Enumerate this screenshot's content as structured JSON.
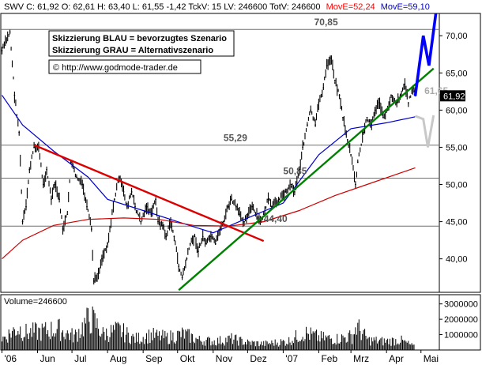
{
  "header": {
    "prefix": "SWV C: 61,92 O: 62,61 H: 63,40 L: 61,55 -1,42 TckV: 15 LV: 246600 TotV: 246600",
    "ma_short": "MovE=52,24",
    "ma_long": "MovE=59,10"
  },
  "annotations": {
    "line1": "Skizzierung BLAU = bevorzugtes Szenario",
    "line2": "Skizzierung GRAU = Alternativszenario",
    "url": "© http://www.godmode-trader.de"
  },
  "volume": {
    "label": "Volume=246600"
  },
  "colors": {
    "price": "#000000",
    "ma_long": "#0000cc",
    "ma_short": "#cc0000",
    "uptrend": "#008000",
    "downtrend": "#dd0000",
    "scenario_blue": "#0000ff",
    "scenario_grey": "#c8c8c8",
    "levels": "#707070",
    "header_red": "#ff0000",
    "header_blue": "#0000cc",
    "last_price_tag": "#000000"
  },
  "chart_data": {
    "type": "bar",
    "subtype": "ohlc-price-chart",
    "title": "",
    "xlabel": "",
    "ylabel": "",
    "ylim": [
      35.5,
      73
    ],
    "y_ticks": [
      "70,00",
      "65,00",
      "60,00",
      "55,00",
      "50,00",
      "45,00",
      "40,00"
    ],
    "x_ticks": [
      "'06",
      "Jun",
      "Jul",
      "Aug",
      "Sep",
      "Okt",
      "Nov",
      "Dez",
      "'07",
      "Feb",
      "Mrz",
      "Apr",
      "Mai"
    ],
    "last_price": "61,92",
    "levels": [
      {
        "label": "70,85",
        "value": 70.85
      },
      {
        "label": "61,65",
        "value": 61.65
      },
      {
        "label": "55,29",
        "value": 55.29
      },
      {
        "label": "50,85",
        "value": 50.85
      },
      {
        "label": "44,40",
        "value": 44.4
      }
    ],
    "price_series": [
      {
        "date": "2006-05-01",
        "value": 68
      },
      {
        "date": "2006-05-08",
        "value": 70.5
      },
      {
        "date": "2006-05-12",
        "value": 62
      },
      {
        "date": "2006-05-16",
        "value": 57
      },
      {
        "date": "2006-05-19",
        "value": 45
      },
      {
        "date": "2006-05-22",
        "value": 47
      },
      {
        "date": "2006-05-25",
        "value": 52
      },
      {
        "date": "2006-05-29",
        "value": 55
      },
      {
        "date": "2006-06-02",
        "value": 55
      },
      {
        "date": "2006-06-06",
        "value": 50
      },
      {
        "date": "2006-06-09",
        "value": 52
      },
      {
        "date": "2006-06-13",
        "value": 48
      },
      {
        "date": "2006-06-16",
        "value": 50
      },
      {
        "date": "2006-06-20",
        "value": 48
      },
      {
        "date": "2006-06-23",
        "value": 44
      },
      {
        "date": "2006-06-27",
        "value": 46
      },
      {
        "date": "2006-06-30",
        "value": 53
      },
      {
        "date": "2006-07-05",
        "value": 51
      },
      {
        "date": "2006-07-10",
        "value": 50
      },
      {
        "date": "2006-07-14",
        "value": 47
      },
      {
        "date": "2006-07-18",
        "value": 44
      },
      {
        "date": "2006-07-20",
        "value": 37
      },
      {
        "date": "2006-07-24",
        "value": 38
      },
      {
        "date": "2006-07-27",
        "value": 40
      },
      {
        "date": "2006-08-01",
        "value": 42
      },
      {
        "date": "2006-08-07",
        "value": 48
      },
      {
        "date": "2006-08-11",
        "value": 51
      },
      {
        "date": "2006-08-15",
        "value": 49
      },
      {
        "date": "2006-08-18",
        "value": 47
      },
      {
        "date": "2006-08-22",
        "value": 49
      },
      {
        "date": "2006-08-25",
        "value": 47
      },
      {
        "date": "2006-08-30",
        "value": 45
      },
      {
        "date": "2006-09-04",
        "value": 47
      },
      {
        "date": "2006-09-08",
        "value": 46
      },
      {
        "date": "2006-09-12",
        "value": 48
      },
      {
        "date": "2006-09-14",
        "value": 45
      },
      {
        "date": "2006-09-18",
        "value": 44.5
      },
      {
        "date": "2006-09-21",
        "value": 43
      },
      {
        "date": "2006-09-25",
        "value": 45
      },
      {
        "date": "2006-09-28",
        "value": 43
      },
      {
        "date": "2006-10-02",
        "value": 39
      },
      {
        "date": "2006-10-05",
        "value": 37.5
      },
      {
        "date": "2006-10-09",
        "value": 40
      },
      {
        "date": "2006-10-12",
        "value": 42
      },
      {
        "date": "2006-10-16",
        "value": 43
      },
      {
        "date": "2006-10-19",
        "value": 41
      },
      {
        "date": "2006-10-23",
        "value": 43
      },
      {
        "date": "2006-10-26",
        "value": 42
      },
      {
        "date": "2006-10-30",
        "value": 43
      },
      {
        "date": "2006-11-03",
        "value": 42
      },
      {
        "date": "2006-11-07",
        "value": 44
      },
      {
        "date": "2006-11-10",
        "value": 45
      },
      {
        "date": "2006-11-14",
        "value": 47
      },
      {
        "date": "2006-11-17",
        "value": 48
      },
      {
        "date": "2006-11-21",
        "value": 47
      },
      {
        "date": "2006-11-24",
        "value": 46
      },
      {
        "date": "2006-11-28",
        "value": 45
      },
      {
        "date": "2006-12-01",
        "value": 46
      },
      {
        "date": "2006-12-05",
        "value": 47
      },
      {
        "date": "2006-12-08",
        "value": 46
      },
      {
        "date": "2006-12-12",
        "value": 45
      },
      {
        "date": "2006-12-15",
        "value": 46
      },
      {
        "date": "2006-12-19",
        "value": 48
      },
      {
        "date": "2006-12-22",
        "value": 47
      },
      {
        "date": "2006-12-28",
        "value": 48
      },
      {
        "date": "2007-01-03",
        "value": 49
      },
      {
        "date": "2007-01-08",
        "value": 50
      },
      {
        "date": "2007-01-11",
        "value": 49
      },
      {
        "date": "2007-01-15",
        "value": 52
      },
      {
        "date": "2007-01-18",
        "value": 55
      },
      {
        "date": "2007-01-22",
        "value": 58
      },
      {
        "date": "2007-01-25",
        "value": 60
      },
      {
        "date": "2007-01-29",
        "value": 58
      },
      {
        "date": "2007-02-01",
        "value": 61
      },
      {
        "date": "2007-02-05",
        "value": 63
      },
      {
        "date": "2007-02-08",
        "value": 66
      },
      {
        "date": "2007-02-12",
        "value": 67
      },
      {
        "date": "2007-02-15",
        "value": 64
      },
      {
        "date": "2007-02-19",
        "value": 62
      },
      {
        "date": "2007-02-22",
        "value": 59
      },
      {
        "date": "2007-02-26",
        "value": 56
      },
      {
        "date": "2007-03-01",
        "value": 54
      },
      {
        "date": "2007-03-05",
        "value": 50
      },
      {
        "date": "2007-03-07",
        "value": 53
      },
      {
        "date": "2007-03-12",
        "value": 57
      },
      {
        "date": "2007-03-15",
        "value": 59
      },
      {
        "date": "2007-03-19",
        "value": 58
      },
      {
        "date": "2007-03-22",
        "value": 60
      },
      {
        "date": "2007-03-26",
        "value": 61
      },
      {
        "date": "2007-03-29",
        "value": 59
      },
      {
        "date": "2007-04-02",
        "value": 60
      },
      {
        "date": "2007-04-05",
        "value": 62
      },
      {
        "date": "2007-04-10",
        "value": 61
      },
      {
        "date": "2007-04-13",
        "value": 62
      },
      {
        "date": "2007-04-17",
        "value": 63.5
      },
      {
        "date": "2007-04-20",
        "value": 61
      },
      {
        "date": "2007-04-24",
        "value": 63
      },
      {
        "date": "2007-04-26",
        "value": 61.92
      }
    ],
    "series": [
      {
        "name": "MovE=59,10",
        "values": [
          {
            "date": "2006-05-01",
            "value": 62
          },
          {
            "date": "2006-05-19",
            "value": 58
          },
          {
            "date": "2006-06-15",
            "value": 54.5
          },
          {
            "date": "2006-07-15",
            "value": 51
          },
          {
            "date": "2006-08-01",
            "value": 48
          },
          {
            "date": "2006-09-01",
            "value": 46.5
          },
          {
            "date": "2006-10-01",
            "value": 45
          },
          {
            "date": "2006-11-01",
            "value": 43.5
          },
          {
            "date": "2006-12-01",
            "value": 45.5
          },
          {
            "date": "2007-01-01",
            "value": 47.5
          },
          {
            "date": "2007-02-01",
            "value": 54
          },
          {
            "date": "2007-03-01",
            "value": 57.5
          },
          {
            "date": "2007-04-01",
            "value": 58.3
          },
          {
            "date": "2007-04-26",
            "value": 59.1
          }
        ]
      },
      {
        "name": "MovE=52,24",
        "values": [
          {
            "date": "2006-05-01",
            "value": 40
          },
          {
            "date": "2006-05-19",
            "value": 42.5
          },
          {
            "date": "2006-06-15",
            "value": 44.5
          },
          {
            "date": "2006-07-15",
            "value": 45.3
          },
          {
            "date": "2006-08-15",
            "value": 45.5
          },
          {
            "date": "2006-09-15",
            "value": 45.3
          },
          {
            "date": "2006-10-15",
            "value": 44.5
          },
          {
            "date": "2006-11-15",
            "value": 44.4
          },
          {
            "date": "2006-12-15",
            "value": 45
          },
          {
            "date": "2007-01-15",
            "value": 46.5
          },
          {
            "date": "2007-02-15",
            "value": 48.5
          },
          {
            "date": "2007-03-15",
            "value": 50
          },
          {
            "date": "2007-04-26",
            "value": 52.24
          }
        ]
      }
    ],
    "trendlines": [
      {
        "name": "Abwaertstrend",
        "from": {
          "date": "2006-05-29",
          "value": 55.3
        },
        "to": {
          "date": "2006-12-15",
          "value": 42.4
        }
      },
      {
        "name": "Aufwaertstrend",
        "from": {
          "date": "2006-10-02",
          "value": 35.8
        },
        "to": {
          "date": "2007-05-12",
          "value": 65.6
        }
      }
    ],
    "scenarios": [
      {
        "name": "bevorzugtes Szenario",
        "points": [
          {
            "date": "2007-04-26",
            "value": 61.9
          },
          {
            "date": "2007-05-03",
            "value": 70
          },
          {
            "date": "2007-05-08",
            "value": 66
          },
          {
            "date": "2007-05-14",
            "value": 73
          }
        ]
      },
      {
        "name": "Alternativszenario",
        "points": [
          {
            "date": "2007-04-26",
            "value": 59.2
          },
          {
            "date": "2007-05-03",
            "value": 58.8
          },
          {
            "date": "2007-05-07",
            "value": 55
          },
          {
            "date": "2007-05-12",
            "value": 59.3
          }
        ]
      }
    ],
    "volume_chart": {
      "y_ticks": [
        "3000000",
        "2000000",
        "1000000"
      ],
      "values": [
        {
          "date": "2006-05-01",
          "value": 900000
        },
        {
          "date": "2006-05-15",
          "value": 1800000
        },
        {
          "date": "2006-05-22",
          "value": 1400000
        },
        {
          "date": "2006-06-05",
          "value": 1500000
        },
        {
          "date": "2006-06-19",
          "value": 1700000
        },
        {
          "date": "2006-07-03",
          "value": 1100000
        },
        {
          "date": "2006-07-17",
          "value": 2600000
        },
        {
          "date": "2006-07-21",
          "value": 2200000
        },
        {
          "date": "2006-07-28",
          "value": 1300000
        },
        {
          "date": "2006-08-11",
          "value": 1600000
        },
        {
          "date": "2006-08-25",
          "value": 900000
        },
        {
          "date": "2006-09-08",
          "value": 1200000
        },
        {
          "date": "2006-09-22",
          "value": 1000000
        },
        {
          "date": "2006-10-06",
          "value": 1300000
        },
        {
          "date": "2006-10-20",
          "value": 800000
        },
        {
          "date": "2006-11-03",
          "value": 700000
        },
        {
          "date": "2006-11-17",
          "value": 900000
        },
        {
          "date": "2006-12-01",
          "value": 600000
        },
        {
          "date": "2006-12-15",
          "value": 500000
        },
        {
          "date": "2007-01-05",
          "value": 700000
        },
        {
          "date": "2007-01-19",
          "value": 1400000
        },
        {
          "date": "2007-02-02",
          "value": 1000000
        },
        {
          "date": "2007-02-16",
          "value": 900000
        },
        {
          "date": "2007-03-02",
          "value": 1100000
        },
        {
          "date": "2007-03-06",
          "value": 1900000
        },
        {
          "date": "2007-03-16",
          "value": 800000
        },
        {
          "date": "2007-03-30",
          "value": 700000
        },
        {
          "date": "2007-04-13",
          "value": 800000
        },
        {
          "date": "2007-04-26",
          "value": 246600
        }
      ]
    }
  }
}
